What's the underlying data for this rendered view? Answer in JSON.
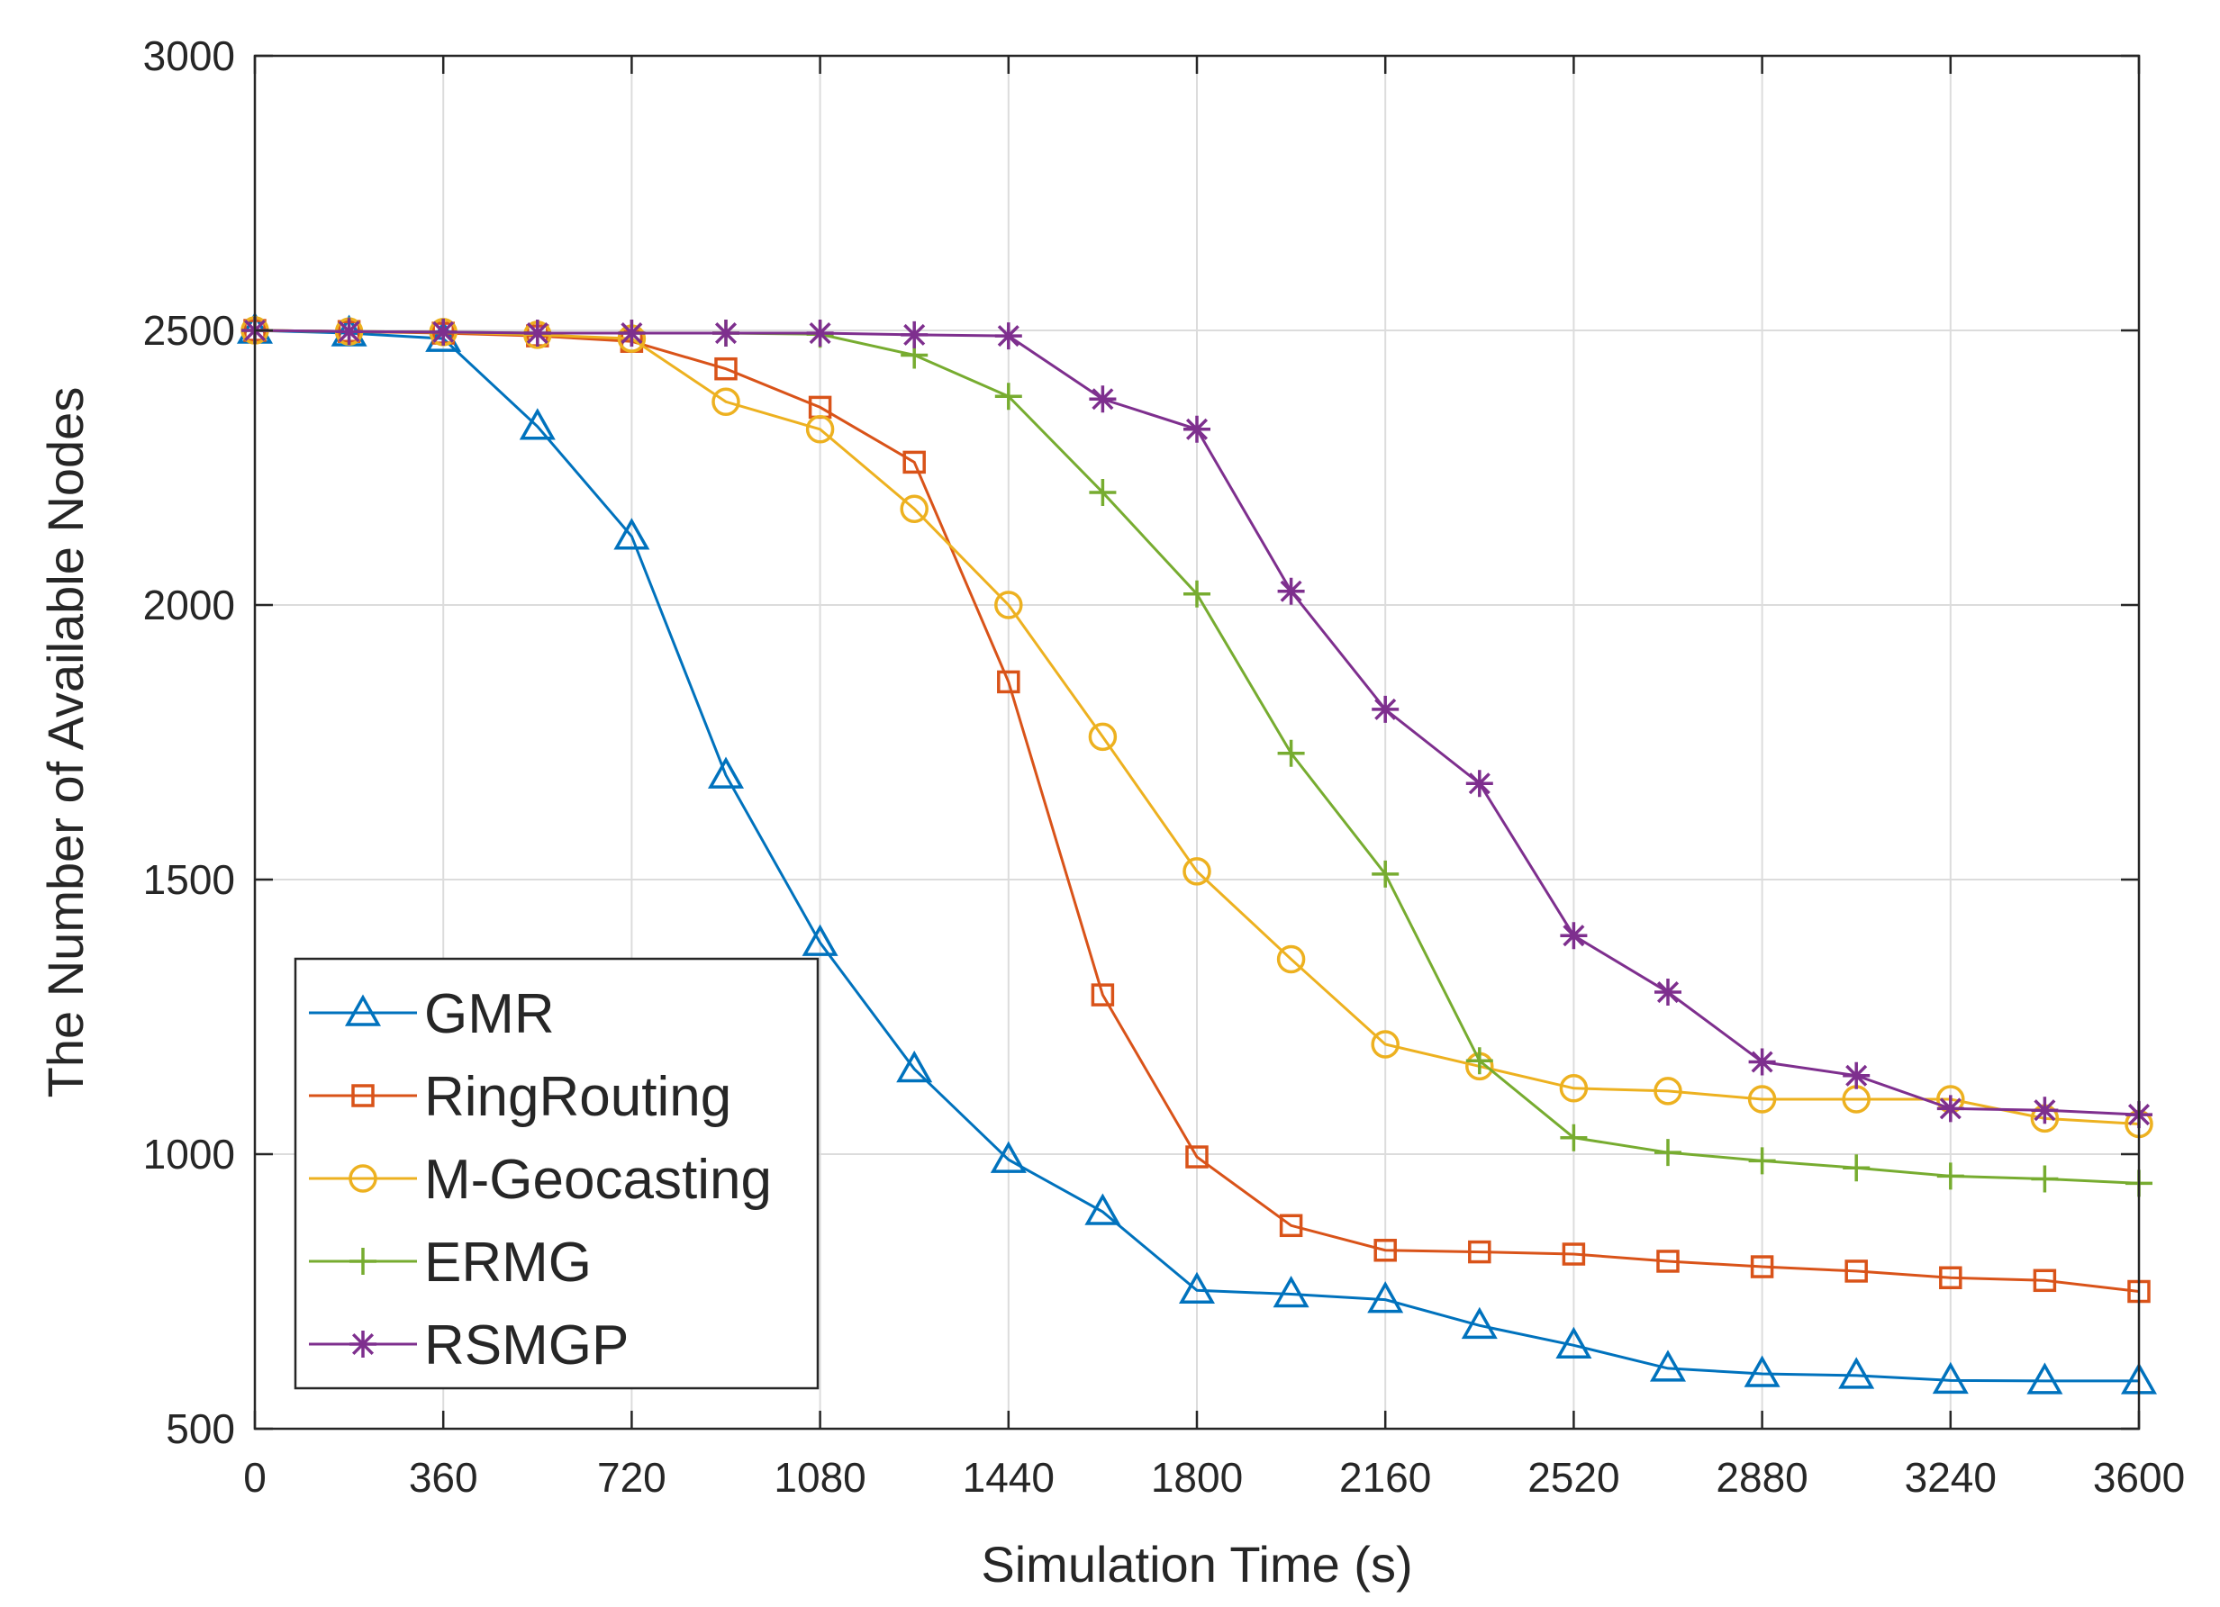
{
  "chart_data": {
    "type": "line",
    "title": "",
    "xlabel": "Simulation Time (s)",
    "ylabel": "The Number of Available Nodes",
    "xlim": [
      0,
      3600
    ],
    "ylim": [
      500,
      3000
    ],
    "xticks": [
      0,
      360,
      720,
      1080,
      1440,
      1800,
      2160,
      2520,
      2880,
      3240,
      3600
    ],
    "yticks": [
      500,
      1000,
      1500,
      2000,
      2500,
      3000
    ],
    "grid": true,
    "legend_position": "bottom-left",
    "x": [
      0,
      180,
      360,
      540,
      720,
      900,
      1080,
      1260,
      1440,
      1620,
      1800,
      1980,
      2160,
      2340,
      2520,
      2700,
      2880,
      3060,
      3240,
      3420,
      3600
    ],
    "series": [
      {
        "name": "GMR",
        "color": "#0072BD",
        "marker": "triangle",
        "values": [
          2500,
          2495,
          2485,
          2325,
          2125,
          1690,
          1385,
          1155,
          990,
          895,
          752,
          745,
          735,
          688,
          652,
          610,
          600,
          597,
          588,
          587,
          587
        ]
      },
      {
        "name": "RingRouting",
        "color": "#D95319",
        "marker": "square",
        "values": [
          2500,
          2498,
          2495,
          2490,
          2480,
          2430,
          2360,
          2260,
          1860,
          1290,
          995,
          870,
          825,
          822,
          818,
          805,
          795,
          787,
          775,
          770,
          750
        ]
      },
      {
        "name": "M-Geocasting",
        "color": "#EDB120",
        "marker": "circle",
        "values": [
          2500,
          2498,
          2497,
          2492,
          2485,
          2370,
          2320,
          2175,
          2000,
          1760,
          1515,
          1355,
          1200,
          1160,
          1120,
          1115,
          1100,
          1100,
          1100,
          1065,
          1055
        ]
      },
      {
        "name": "ERMG",
        "color": "#77AC30",
        "marker": "plus",
        "values": [
          2500,
          2498,
          2497,
          2495,
          2495,
          2495,
          2493,
          2455,
          2380,
          2205,
          2020,
          1730,
          1510,
          1170,
          1030,
          1003,
          988,
          975,
          960,
          955,
          947
        ]
      },
      {
        "name": "RSMGP",
        "color": "#7E2F8E",
        "marker": "asterisk",
        "values": [
          2500,
          2498,
          2497,
          2495,
          2495,
          2495,
          2495,
          2492,
          2490,
          2375,
          2320,
          2025,
          1810,
          1675,
          1398,
          1295,
          1168,
          1143,
          1083,
          1080,
          1072
        ]
      }
    ]
  }
}
